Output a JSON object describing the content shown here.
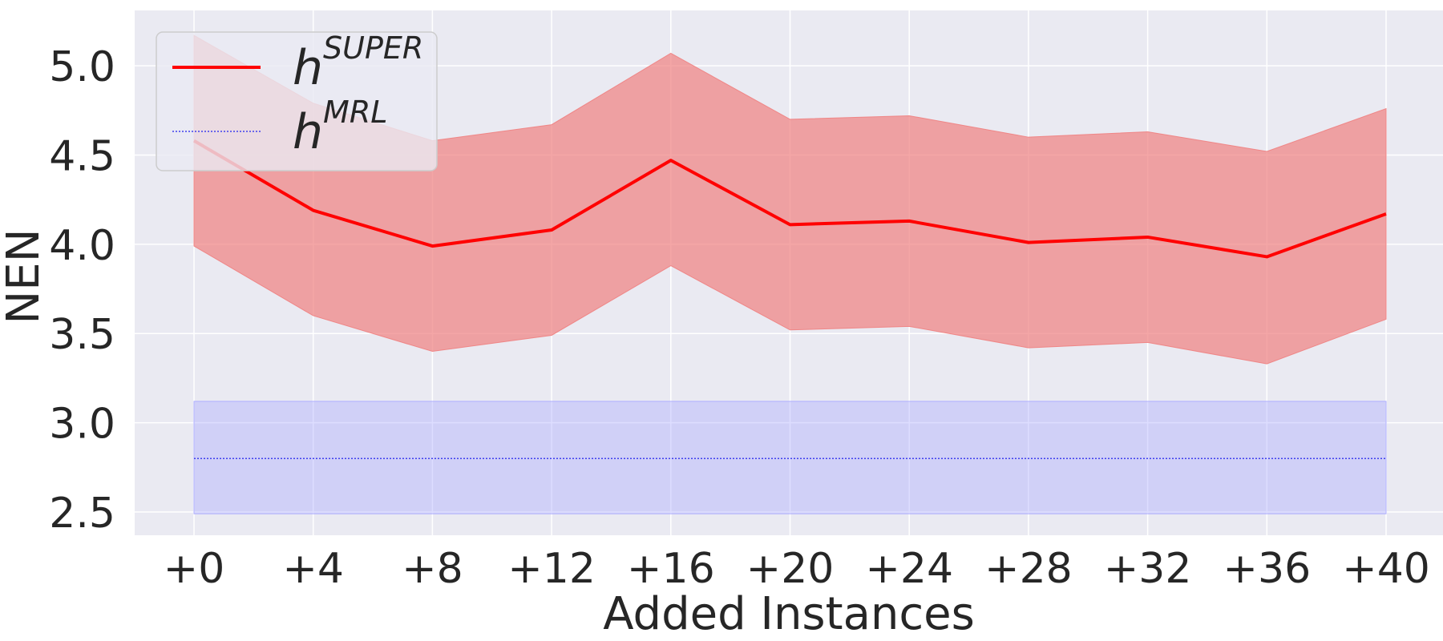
{
  "chart_data": {
    "type": "line",
    "xlabel": "Added Instances",
    "ylabel": "NEN",
    "categories": [
      "+0",
      "+4",
      "+8",
      "+12",
      "+16",
      "+20",
      "+24",
      "+28",
      "+32",
      "+36",
      "+40"
    ],
    "ylim": [
      2.37,
      5.31
    ],
    "yticks": [
      "2.5",
      "3.0",
      "3.5",
      "4.0",
      "4.5",
      "5.0"
    ],
    "grid": true,
    "legend_position": "top-left",
    "series": [
      {
        "name_base": "h",
        "name_sup": "SUPER",
        "color": "#ff0000",
        "style": "solid",
        "values": [
          4.58,
          4.19,
          3.99,
          4.08,
          4.47,
          4.11,
          4.13,
          4.01,
          4.04,
          3.93,
          4.17
        ],
        "lower": [
          3.99,
          3.6,
          3.4,
          3.49,
          3.88,
          3.52,
          3.54,
          3.42,
          3.45,
          3.33,
          3.58
        ],
        "upper": [
          5.17,
          4.79,
          4.58,
          4.67,
          5.07,
          4.7,
          4.72,
          4.6,
          4.63,
          4.52,
          4.76
        ],
        "band_color": "#f08080"
      },
      {
        "name_base": "h",
        "name_sup": "MRL",
        "color": "#4040ee",
        "style": "dotted",
        "values": [
          2.8,
          2.8,
          2.8,
          2.8,
          2.8,
          2.8,
          2.8,
          2.8,
          2.8,
          2.8,
          2.8
        ],
        "lower": [
          2.49,
          2.49,
          2.49,
          2.49,
          2.49,
          2.49,
          2.49,
          2.49,
          2.49,
          2.49,
          2.49
        ],
        "upper": [
          3.12,
          3.12,
          3.12,
          3.12,
          3.12,
          3.12,
          3.12,
          3.12,
          3.12,
          3.12,
          3.12
        ],
        "band_color": "#aaaaff"
      }
    ]
  }
}
